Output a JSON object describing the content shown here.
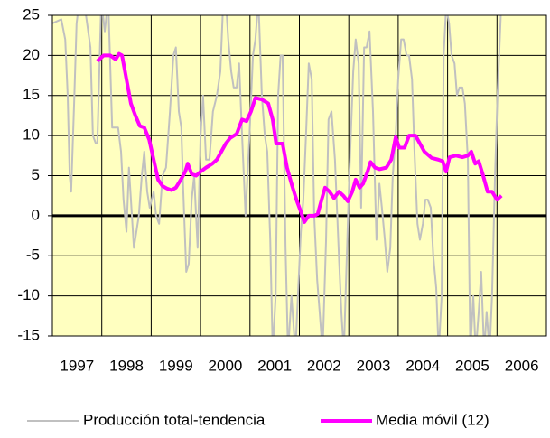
{
  "chart_data": {
    "type": "line",
    "xlim": [
      1997,
      2007
    ],
    "xticks": [
      1997,
      1998,
      1999,
      2000,
      2001,
      2002,
      2003,
      2004,
      2005,
      2006
    ],
    "ylim": [
      -15,
      25
    ],
    "yticks": [
      -15,
      -10,
      -5,
      0,
      5,
      10,
      15,
      20,
      25
    ],
    "grid": true,
    "legend": "bottom",
    "background": "#ffffc0",
    "series": [
      {
        "name": "Producción total-tendencia",
        "color": "#c0c0c0",
        "x": [
          1997.0,
          1997.18,
          1997.26,
          1997.31,
          1997.35,
          1997.38,
          1997.44,
          1997.49,
          1997.55,
          1997.62,
          1997.68,
          1997.77,
          1997.82,
          1997.88,
          1997.91,
          1997.99,
          1998.06,
          1998.13,
          1998.21,
          1998.28,
          1998.33,
          1998.39,
          1998.44,
          1998.5,
          1998.55,
          1998.61,
          1998.65,
          1998.7,
          1998.75,
          1998.81,
          1998.86,
          1998.92,
          1998.97,
          1999.05,
          1999.1,
          1999.16,
          1999.23,
          1999.3,
          1999.38,
          1999.45,
          1999.5,
          1999.56,
          1999.61,
          1999.65,
          1999.71,
          1999.76,
          1999.82,
          1999.87,
          1999.94,
          2000.0,
          2000.05,
          2000.11,
          2000.18,
          2000.25,
          2000.33,
          2000.4,
          2000.46,
          2000.51,
          2000.56,
          2000.62,
          2000.67,
          2000.73,
          2000.78,
          2000.84,
          2000.91,
          2000.99,
          2001.06,
          2001.11,
          2001.17,
          2001.24,
          2001.3,
          2001.35,
          2001.41,
          2001.46,
          2001.52,
          2001.57,
          2001.62,
          2001.66,
          2001.72,
          2001.77,
          2001.84,
          2001.92,
          2001.97,
          2002.03,
          2002.08,
          2002.14,
          2002.19,
          2002.25,
          2002.3,
          2002.36,
          2002.41,
          2002.47,
          2002.54,
          2002.59,
          2002.65,
          2002.72,
          2002.8,
          2002.85,
          2002.9,
          2002.96,
          2003.01,
          2003.09,
          2003.14,
          2003.2,
          2003.25,
          2003.31,
          2003.36,
          2003.42,
          2003.49,
          2003.56,
          2003.62,
          2003.67,
          2003.73,
          2003.78,
          2003.84,
          2003.89,
          2003.95,
          2004.0,
          2004.06,
          2004.11,
          2004.17,
          2004.22,
          2004.28,
          2004.33,
          2004.39,
          2004.44,
          2004.5,
          2004.55,
          2004.6,
          2004.66,
          2004.71,
          2004.77,
          2004.82,
          2004.88,
          2004.92,
          2004.97,
          2005.03,
          2005.08,
          2005.14,
          2005.19,
          2005.24,
          2005.3,
          2005.35,
          2005.41,
          2005.46,
          2005.52,
          2005.57,
          2005.63,
          2005.68,
          2005.74,
          2005.79,
          2005.85,
          2005.9,
          2005.96,
          2006.01,
          2006.09
        ],
        "values": [
          24,
          24.5,
          22,
          15,
          5,
          3,
          14,
          24,
          27,
          27,
          25,
          21,
          10,
          9,
          9,
          27,
          23,
          27,
          11,
          11,
          11,
          8,
          2,
          -2,
          6,
          0,
          -4,
          -2,
          0,
          5,
          8,
          3,
          1,
          3,
          0,
          -1,
          5,
          6,
          13,
          20,
          21,
          13,
          11,
          3,
          -7,
          -6,
          2,
          5,
          -4,
          10,
          15,
          7,
          7,
          13,
          15,
          18,
          27,
          27,
          22,
          18,
          16,
          16,
          19,
          10,
          0,
          10,
          20,
          22,
          27,
          15,
          10,
          8,
          -3,
          -17,
          -10,
          15,
          20,
          20,
          -4,
          -17,
          -10,
          -17,
          -10,
          -2,
          2,
          11,
          19,
          17,
          0,
          -8,
          -12,
          -17,
          -3,
          12,
          13,
          7,
          -5,
          -12,
          -17,
          -5,
          5,
          18,
          22,
          19,
          1,
          21,
          21,
          23,
          13,
          -3,
          4,
          1,
          -3,
          -7,
          -4,
          5,
          10,
          17,
          22,
          22,
          20,
          20,
          17,
          8,
          -1,
          -3,
          -1,
          2,
          2,
          1,
          -5,
          -9,
          -17,
          -10,
          20,
          26,
          24,
          20,
          19,
          15,
          16,
          16,
          14,
          7,
          -17,
          -10,
          -17,
          -12,
          -7,
          -17,
          -12,
          -17,
          -10,
          5,
          15,
          27
        ]
      },
      {
        "name": "Media móvil (12)",
        "color": "#ff00ff",
        "x": [
          1997.91,
          1998.04,
          1998.17,
          1998.28,
          1998.35,
          1998.41,
          1998.5,
          1998.59,
          1998.68,
          1998.77,
          1998.86,
          1998.96,
          1999.05,
          1999.14,
          1999.23,
          1999.32,
          1999.41,
          1999.5,
          1999.6,
          1999.69,
          1999.74,
          1999.82,
          1999.91,
          2000.0,
          2000.11,
          2000.24,
          2000.33,
          2000.42,
          2000.51,
          2000.6,
          2000.73,
          2000.84,
          2000.93,
          2001.02,
          2001.11,
          2001.24,
          2001.37,
          2001.46,
          2001.53,
          2001.66,
          2001.75,
          2001.84,
          2001.94,
          2002.03,
          2002.1,
          2002.19,
          2002.3,
          2002.37,
          2002.45,
          2002.52,
          2002.61,
          2002.7,
          2002.8,
          2002.89,
          2002.98,
          2003.07,
          2003.14,
          2003.22,
          2003.29,
          2003.38,
          2003.44,
          2003.53,
          2003.62,
          2003.76,
          2003.86,
          2003.95,
          2004.02,
          2004.13,
          2004.22,
          2004.35,
          2004.44,
          2004.53,
          2004.68,
          2004.81,
          2004.9,
          2004.97,
          2005.04,
          2005.17,
          2005.3,
          2005.41,
          2005.48,
          2005.56,
          2005.63,
          2005.72,
          2005.81,
          2005.9,
          2006.0,
          2006.09
        ],
        "values": [
          19.3,
          20,
          20,
          19.5,
          20.2,
          20,
          17,
          14,
          12.5,
          11.2,
          11,
          9.5,
          7,
          4.5,
          3.7,
          3.4,
          3.2,
          3.5,
          4.5,
          5.5,
          6.5,
          5.2,
          5,
          5.5,
          6,
          6.5,
          7,
          8,
          9,
          9.7,
          10.2,
          12,
          11.8,
          13,
          14.7,
          14.5,
          14,
          12,
          9,
          9,
          6,
          4,
          2,
          0.5,
          -0.8,
          0,
          0,
          0.2,
          2,
          3.5,
          3,
          2.2,
          3,
          2.5,
          1.8,
          3,
          4.5,
          3.5,
          4,
          5.5,
          6.7,
          6,
          5.8,
          6,
          7,
          9.8,
          8.5,
          8.5,
          10,
          10,
          9,
          8,
          7.2,
          7,
          6.8,
          5.5,
          7.3,
          7.5,
          7.3,
          7.5,
          8,
          6.5,
          6.8,
          5,
          3,
          3,
          2,
          2.5
        ]
      }
    ]
  }
}
